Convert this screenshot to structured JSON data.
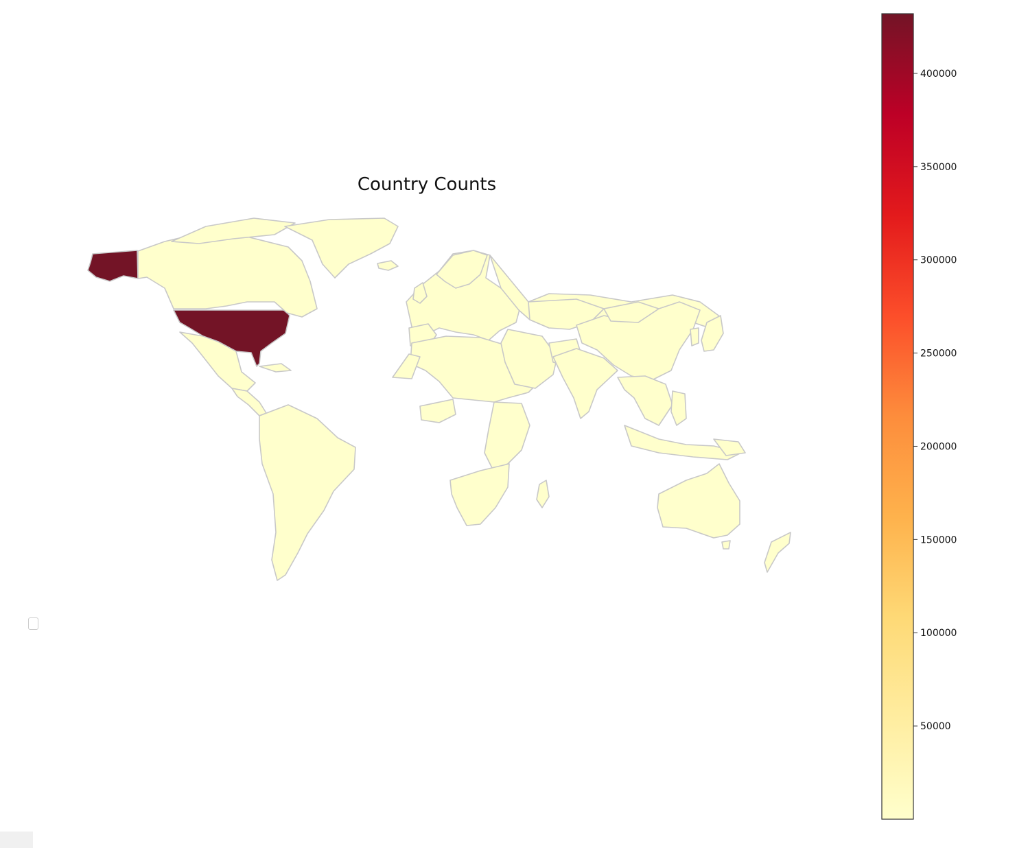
{
  "chart_data": {
    "type": "choropleth",
    "title": "Country Counts",
    "colormap": "YlOrRd",
    "colorbar": {
      "position": "right",
      "ticks": [
        50000,
        100000,
        150000,
        200000,
        250000,
        300000,
        350000,
        400000
      ],
      "tick_labels": [
        "50000",
        "100000",
        "150000",
        "200000",
        "250000",
        "300000",
        "350000",
        "400000"
      ],
      "range": [
        0,
        432000
      ]
    },
    "highlighted": [
      {
        "country": "United States",
        "value": 432000
      }
    ],
    "default_value": 0,
    "border_color": "#c8c8c8",
    "colors": {
      "low": "#ffffcc",
      "high": "#800026",
      "high_fill": "#731426"
    }
  }
}
